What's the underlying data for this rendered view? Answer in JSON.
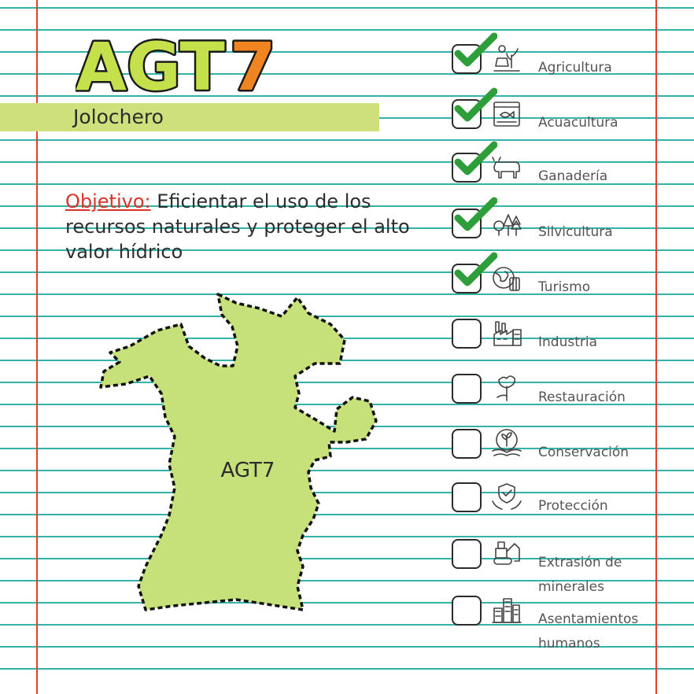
{
  "header": {
    "logo_text": "AGT7",
    "subtitle": "Jolochero"
  },
  "objective": {
    "label": "Objetivo:",
    "text": "Eficientar el uso de los recursos naturales y proteger el alto valor hídrico"
  },
  "map": {
    "label": "AGT7",
    "fill_color": "#c6e07a",
    "border_color": "#111111"
  },
  "colors": {
    "rule_line": "#34b3a8",
    "margin_line": "#e0402c",
    "check": "#2e9e3a",
    "logo_green": "#c4e04b",
    "logo_orange": "#f08420"
  },
  "checklist": [
    {
      "label": "Agricultura",
      "checked": true,
      "icon": "farmer-icon"
    },
    {
      "label": "Acuacultura",
      "checked": true,
      "icon": "fish-tank-icon"
    },
    {
      "label": "Ganadería",
      "checked": true,
      "icon": "cow-icon"
    },
    {
      "label": "Silvicultura",
      "checked": true,
      "icon": "trees-icon"
    },
    {
      "label": "Turismo",
      "checked": true,
      "icon": "globe-luggage-icon"
    },
    {
      "label": "Industria",
      "checked": false,
      "icon": "factory-icon"
    },
    {
      "label": "Restauración",
      "checked": false,
      "icon": "tree-hand-icon"
    },
    {
      "label": "Conservación",
      "checked": false,
      "icon": "plant-hands-icon"
    },
    {
      "label": "Protección",
      "checked": false,
      "icon": "shield-hands-icon"
    },
    {
      "label": "Extrasión de minerales",
      "label_lines": [
        "Extrasión de",
        "minerales"
      ],
      "checked": false,
      "icon": "excavator-icon"
    },
    {
      "label": "Asentamientos humanos",
      "label_lines": [
        "Asentamientos",
        "humanos"
      ],
      "checked": false,
      "icon": "buildings-icon"
    }
  ]
}
